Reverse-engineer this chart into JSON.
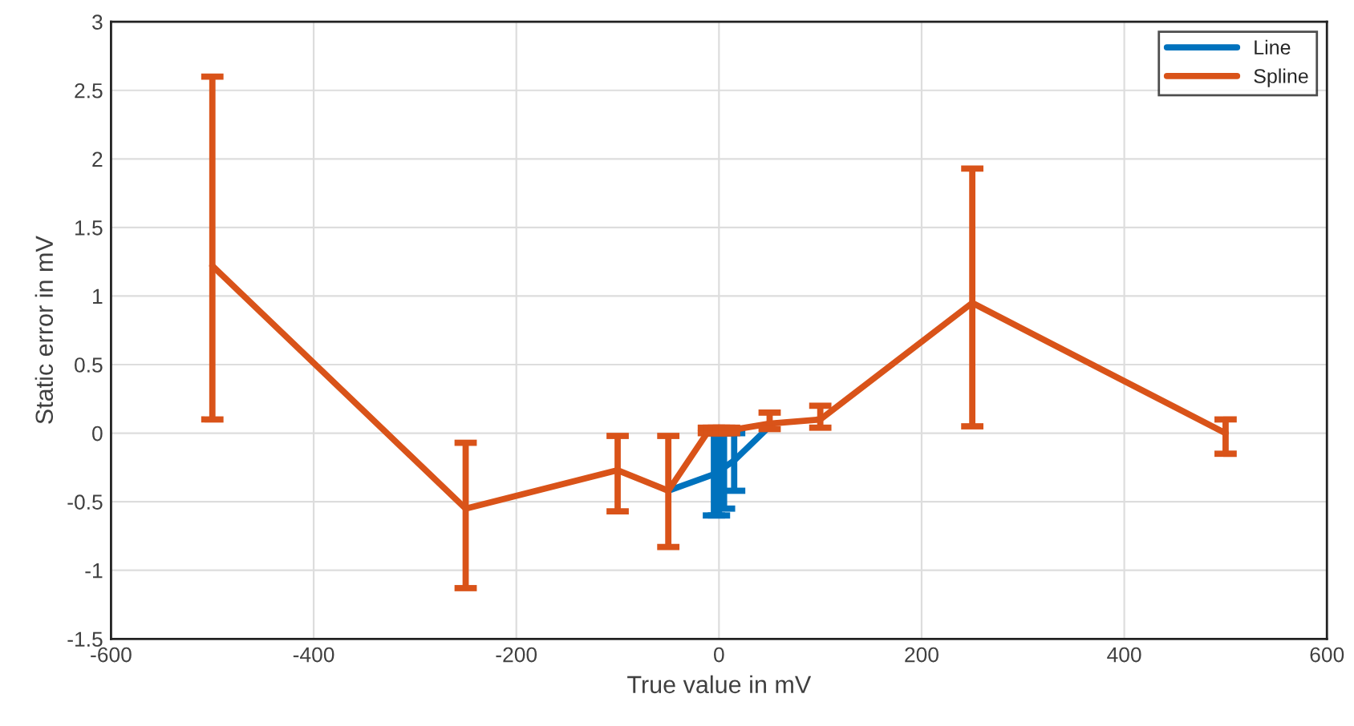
{
  "chart_data": {
    "type": "line",
    "xlabel": "True value in mV",
    "ylabel": "Static error in mV",
    "xlim": [
      -600,
      600
    ],
    "xticks": [
      -600,
      -400,
      -200,
      0,
      200,
      400,
      600
    ],
    "ylim": [
      -1.5,
      3
    ],
    "yticks": [
      -1.5,
      -1,
      -0.5,
      0,
      0.5,
      1,
      1.5,
      2,
      2.5,
      3
    ],
    "grid": true,
    "legend": "top right",
    "marker": "none",
    "line_style": "solid",
    "series": [
      {
        "name": "Line",
        "color": "#0072bd",
        "x": [
          -50,
          -5,
          0,
          5,
          15,
          50
        ],
        "values": [
          -0.42,
          -0.3,
          -0.28,
          -0.25,
          -0.2,
          0.05
        ],
        "errors": [
          null,
          [
            -0.6,
            0
          ],
          [
            -0.6,
            0
          ],
          [
            -0.55,
            0
          ],
          [
            -0.42,
            0
          ],
          null
        ]
      },
      {
        "name": "Spline",
        "color": "#d95319",
        "x": [
          -500,
          -250,
          -100,
          -50,
          -10,
          -5,
          0,
          5,
          10,
          50,
          100,
          250,
          500
        ],
        "values": [
          1.22,
          -0.55,
          -0.27,
          -0.42,
          0.02,
          0.02,
          0.02,
          0.02,
          0.02,
          0.07,
          0.1,
          0.95,
          0
        ],
        "errors": [
          [
            0.1,
            2.6
          ],
          [
            -1.13,
            -0.07
          ],
          [
            -0.57,
            -0.02
          ],
          [
            -0.83,
            -0.02
          ],
          [
            0,
            0.04
          ],
          [
            0,
            0.04
          ],
          [
            0,
            0.04
          ],
          [
            0,
            0.04
          ],
          [
            0,
            0.04
          ],
          [
            0.03,
            0.15
          ],
          [
            0.04,
            0.2
          ],
          [
            0.05,
            1.93
          ],
          [
            -0.15,
            0.1
          ]
        ]
      }
    ]
  }
}
